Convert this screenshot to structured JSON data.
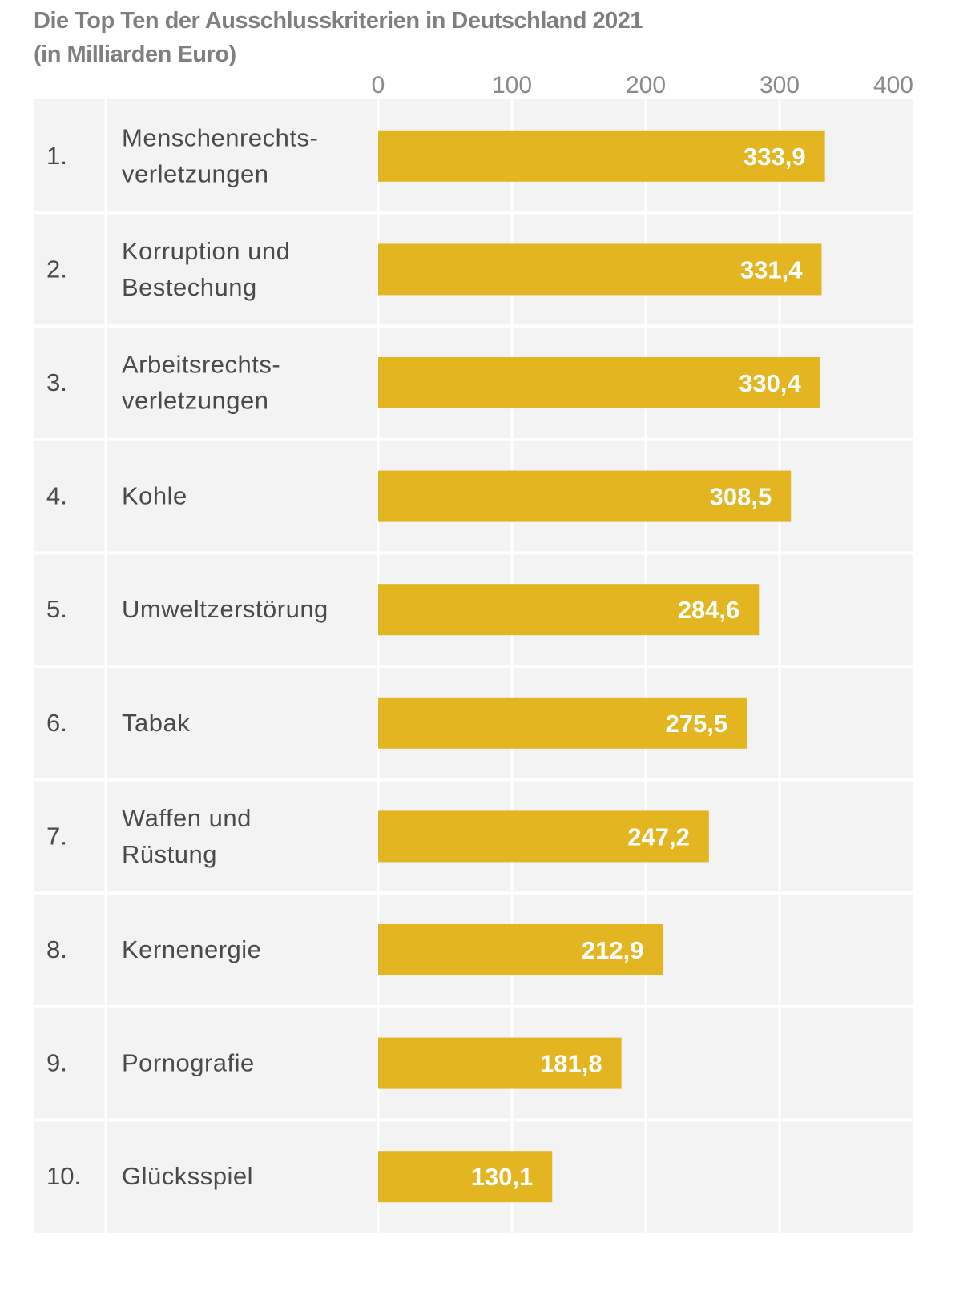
{
  "chart_data": {
    "type": "bar",
    "orientation": "horizontal",
    "title": "Die Top Ten der Ausschlusskriterien in Deutschland 2021",
    "subtitle": "(in Milliarden Euro)",
    "ranks": [
      "1.",
      "2.",
      "3.",
      "4.",
      "5.",
      "6.",
      "7.",
      "8.",
      "9.",
      "10."
    ],
    "categories": [
      [
        "Menschenrechts-",
        "verletzungen"
      ],
      [
        "Korruption und",
        "Bestechung"
      ],
      [
        "Arbeitsrechts-",
        "verletzungen"
      ],
      [
        "Kohle"
      ],
      [
        "Umweltzerstörung"
      ],
      [
        "Tabak"
      ],
      [
        "Waffen und",
        "Rüstung"
      ],
      [
        "Kernenergie"
      ],
      [
        "Pornografie"
      ],
      [
        "Glücksspiel"
      ]
    ],
    "values": [
      333.9,
      331.4,
      330.4,
      308.5,
      284.6,
      275.5,
      247.2,
      212.9,
      181.8,
      130.1
    ],
    "value_labels": [
      "333,9",
      "331,4",
      "330,4",
      "308,5",
      "284,6",
      "275,5",
      "247,2",
      "212,9",
      "181,8",
      "130,1"
    ],
    "xlim": [
      0,
      400
    ],
    "xticks": [
      "0",
      "100",
      "200",
      "300",
      "400"
    ],
    "xtick_values": [
      0,
      100,
      200,
      300,
      400
    ],
    "axis_position": "top",
    "grid": true,
    "colors": {
      "bar": "#E2B521",
      "background": "#F3F3F3",
      "grid": "#FFFFFF",
      "text": "#4a4a4a",
      "tick": "#8a8a8a",
      "value_label": "#FFFFFF"
    }
  }
}
